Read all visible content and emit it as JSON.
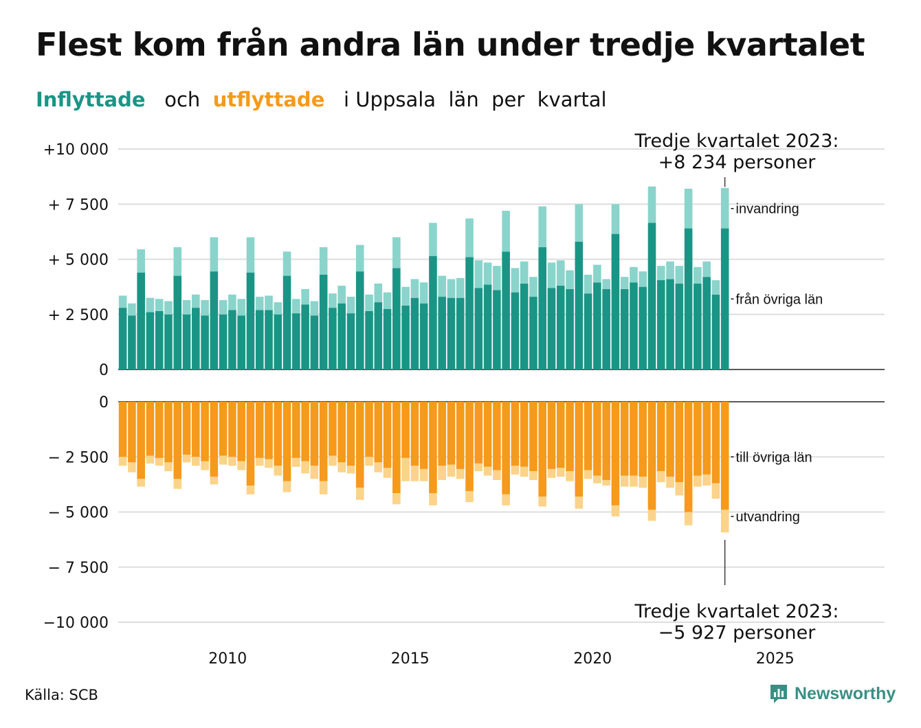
{
  "title": "Flest kom från andra län under tredje kvartalet",
  "subtitle": {
    "part1": "Inflyttade",
    "part2": "och",
    "part3": "utflyttade",
    "part4": "i Uppsala  län  per  kvartal"
  },
  "source": "Källa: SCB",
  "brand": "Newsworthy",
  "colors": {
    "in_domestic": "#1a9585",
    "in_immigration": "#8ad4cb",
    "out_domestic": "#f59a1c",
    "out_emigration": "#fbd38a",
    "grid": "#dddddd",
    "axis": "#222222",
    "logo": "#3a8f83"
  },
  "chart_data": {
    "type": "bar",
    "stacked": true,
    "x_start": "2007 Q1",
    "x_end": "2023 Q3",
    "x_ticks": [
      "2010",
      "2015",
      "2020",
      "2025"
    ],
    "x_range": [
      2007,
      2028
    ],
    "panels": [
      {
        "name": "Inflyttade",
        "ylim": [
          0,
          10000
        ],
        "y_ticks": [
          0,
          2500,
          5000,
          7500,
          10000
        ],
        "y_tick_labels": [
          "0",
          "+ 2 500",
          "+ 5 000",
          "+ 7 500",
          "+10 000"
        ],
        "series": [
          {
            "name": "från övriga län",
            "values": [
              2800,
              2450,
              4400,
              2600,
              2650,
              2500,
              4250,
              2500,
              2800,
              2450,
              4450,
              2500,
              2700,
              2450,
              4400,
              2700,
              2700,
              2500,
              4250,
              2550,
              2950,
              2450,
              4300,
              2800,
              3000,
              2550,
              4450,
              2650,
              3050,
              2750,
              4600,
              2900,
              3250,
              3000,
              5150,
              3300,
              3250,
              3250,
              5100,
              3700,
              3850,
              3600,
              5350,
              3500,
              3900,
              3300,
              5550,
              3700,
              3800,
              3650,
              5800,
              3450,
              3950,
              3650,
              6150,
              3650,
              3950,
              3750,
              6650,
              4050,
              4100,
              3900,
              6400,
              3900,
              4200,
              3400,
              6400
            ]
          },
          {
            "name": "invandring",
            "values": [
              550,
              550,
              1050,
              650,
              550,
              600,
              1300,
              650,
              600,
              700,
              1550,
              650,
              700,
              750,
              1600,
              600,
              650,
              550,
              1100,
              650,
              700,
              650,
              1250,
              650,
              800,
              750,
              1200,
              750,
              850,
              750,
              1400,
              850,
              850,
              950,
              1500,
              950,
              850,
              900,
              1750,
              1250,
              1000,
              1100,
              1850,
              1100,
              1000,
              900,
              1850,
              1150,
              1150,
              850,
              1700,
              850,
              800,
              450,
              1350,
              550,
              700,
              700,
              1650,
              650,
              800,
              800,
              1800,
              750,
              700,
              650,
              1834
            ]
          }
        ],
        "total_labels": [
          "",
          "",
          "",
          "",
          "",
          "",
          "",
          "",
          "",
          "",
          "",
          "",
          "",
          "",
          "",
          "",
          "",
          "",
          "",
          "",
          "",
          "",
          "",
          "",
          "",
          "",
          "",
          "",
          "",
          "",
          "",
          "",
          "",
          "",
          "",
          "",
          "",
          "",
          "",
          "",
          "",
          "",
          "",
          "",
          "",
          "",
          "",
          "",
          "",
          "",
          "",
          "",
          "",
          "",
          "",
          "",
          "",
          "",
          "",
          "",
          "",
          "",
          "",
          "",
          "",
          "",
          ""
        ],
        "annotation": {
          "line1": "Tredje kvartalet 2023:",
          "line2": "+8 234 personer"
        },
        "series_labels": [
          {
            "text": "invandring",
            "value": 7300
          },
          {
            "text": "från övriga län",
            "value": 3200
          }
        ]
      },
      {
        "name": "Utflyttade",
        "ylim": [
          -10000,
          0
        ],
        "y_ticks": [
          0,
          -2500,
          -5000,
          -7500,
          -10000
        ],
        "y_tick_labels": [
          "0",
          "− 2 500",
          "− 5 000",
          "− 7 500",
          "−10 000"
        ],
        "series": [
          {
            "name": "till övriga län",
            "values": [
              -2500,
              -2750,
              -3500,
              -2450,
              -2550,
              -2750,
              -3500,
              -2400,
              -2500,
              -2700,
              -3400,
              -2450,
              -2500,
              -2700,
              -3800,
              -2550,
              -2600,
              -2900,
              -3600,
              -2550,
              -2700,
              -2900,
              -3600,
              -2450,
              -2750,
              -2900,
              -3900,
              -2500,
              -2750,
              -3000,
              -4150,
              -2550,
              -2900,
              -3050,
              -4150,
              -2900,
              -2850,
              -3050,
              -4050,
              -2800,
              -2950,
              -3100,
              -4200,
              -2900,
              -2950,
              -3150,
              -4300,
              -3050,
              -3000,
              -3150,
              -4300,
              -3100,
              -3350,
              -3550,
              -4700,
              -3350,
              -3350,
              -3400,
              -4900,
              -3150,
              -3400,
              -3650,
              -5000,
              -3350,
              -3300,
              -3700,
              -4900
            ]
          },
          {
            "name": "utvandring",
            "values": [
              -400,
              -450,
              -350,
              -350,
              -350,
              -400,
              -450,
              -350,
              -400,
              -400,
              -350,
              -400,
              -400,
              -400,
              -400,
              -350,
              -400,
              -450,
              -500,
              -400,
              -550,
              -600,
              -600,
              -450,
              -450,
              -350,
              -550,
              -400,
              -450,
              -450,
              -500,
              -1050,
              -700,
              -550,
              -550,
              -650,
              -550,
              -450,
              -500,
              -350,
              -400,
              -450,
              -500,
              -400,
              -450,
              -400,
              -450,
              -400,
              -400,
              -450,
              -550,
              -400,
              -350,
              -250,
              -500,
              -500,
              -500,
              -500,
              -500,
              -500,
              -500,
              -600,
              -600,
              -500,
              -500,
              -700,
              -1027
            ]
          }
        ],
        "annotation": {
          "line1": "Tredje kvartalet 2023:",
          "line2": "−5 927 personer"
        },
        "series_labels": [
          {
            "text": "till övriga län",
            "value": -2500
          },
          {
            "text": "utvandring",
            "value": -5200
          }
        ]
      }
    ]
  }
}
